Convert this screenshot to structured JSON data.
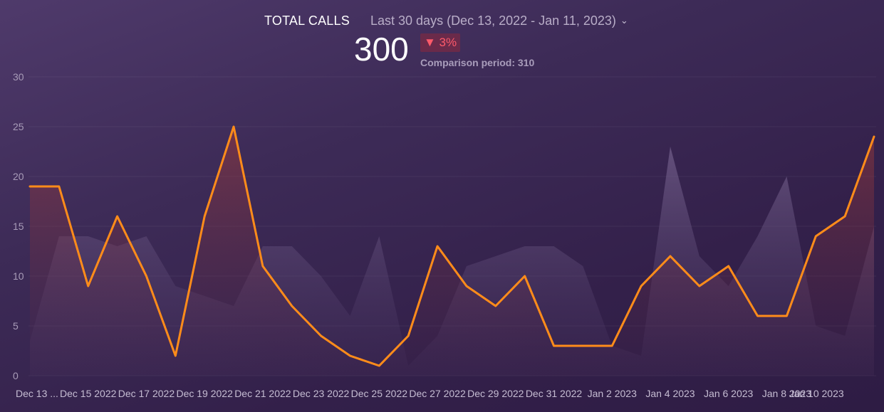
{
  "header": {
    "title": "TOTAL CALLS",
    "range_label": "Last 30 days (Dec 13, 2022 - Jan 11, 2023)",
    "range_chevron_icon": "chevron-down-icon",
    "value": "300",
    "change": "▼ 3%",
    "comparison": "Comparison period: 310"
  },
  "colors": {
    "current_line": "#ff8c1a",
    "comparison_area": "#6a5683",
    "negative_badge": "#ff5a6a"
  },
  "chart_data": {
    "type": "line",
    "ylim": [
      0,
      30
    ],
    "y_ticks": [
      0,
      5,
      10,
      15,
      20,
      25,
      30
    ],
    "x_tick_labels": [
      "Dec 13 ...",
      "Dec 15 2022",
      "Dec 17 2022",
      "Dec 19 2022",
      "Dec 21 2022",
      "Dec 23 2022",
      "Dec 25 2022",
      "Dec 27 2022",
      "Dec 29 2022",
      "Dec 31 2022",
      "Jan 2 2023",
      "Jan 4 2023",
      "Jan 6 2023",
      "Jan 8 2023",
      "Jan 10 2023"
    ],
    "x": [
      "Dec 13 2022",
      "Dec 14 2022",
      "Dec 15 2022",
      "Dec 16 2022",
      "Dec 17 2022",
      "Dec 18 2022",
      "Dec 19 2022",
      "Dec 20 2022",
      "Dec 21 2022",
      "Dec 22 2022",
      "Dec 23 2022",
      "Dec 24 2022",
      "Dec 25 2022",
      "Dec 26 2022",
      "Dec 27 2022",
      "Dec 28 2022",
      "Dec 29 2022",
      "Dec 30 2022",
      "Dec 31 2022",
      "Jan 1 2023",
      "Jan 2 2023",
      "Jan 3 2023",
      "Jan 4 2023",
      "Jan 5 2023",
      "Jan 6 2023",
      "Jan 7 2023",
      "Jan 8 2023",
      "Jan 9 2023",
      "Jan 10 2023",
      "Jan 11 2023"
    ],
    "series": [
      {
        "style": "line",
        "values": [
          19,
          19,
          9,
          16,
          10,
          2,
          16,
          25,
          11,
          7,
          4,
          2,
          1,
          4,
          13,
          9,
          7,
          10,
          3,
          3,
          3,
          9,
          12,
          9,
          11,
          6,
          6,
          14,
          16,
          24
        ]
      },
      {
        "style": "area",
        "values": [
          3.5,
          14,
          14,
          13,
          14,
          9,
          8,
          7,
          13,
          13,
          10,
          6,
          14,
          1,
          4,
          11,
          12,
          13,
          13,
          11,
          3,
          2,
          23,
          12,
          9,
          14,
          20,
          5,
          4,
          15
        ]
      }
    ],
    "grid": true,
    "legend": "none"
  }
}
